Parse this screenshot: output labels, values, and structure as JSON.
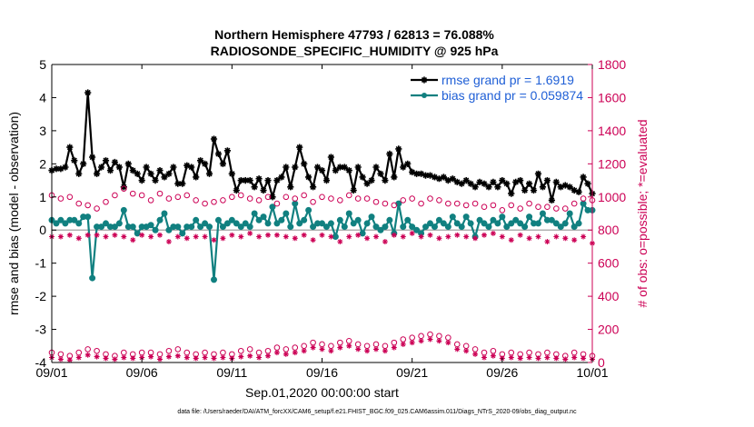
{
  "chart_data": {
    "type": "line",
    "title": "Northern Hemisphere 47793 / 62813 = 76.088%",
    "subtitle": "RADIOSONDE_SPECIFIC_HUMIDITY @ 925 hPa",
    "xlabel": "Sep.01,2020 00:00:00 start",
    "ylabel": "rmse and bias (model - observation)",
    "y2label": "# of obs: o=possible; *=evaluated",
    "xlim": [
      0,
      30
    ],
    "ylim": [
      -4,
      5
    ],
    "y2lim": [
      0,
      1800
    ],
    "xticks": [
      0,
      5,
      10,
      15,
      20,
      25,
      30
    ],
    "xtick_labels": [
      "09/01",
      "09/06",
      "09/11",
      "09/16",
      "09/21",
      "09/26",
      "10/01"
    ],
    "yticks": [
      -4,
      -3,
      -2,
      -1,
      0,
      1,
      2,
      3,
      4,
      5
    ],
    "y2ticks": [
      0,
      200,
      400,
      600,
      800,
      1000,
      1200,
      1400,
      1600,
      1800
    ],
    "legend_position": "top-right",
    "footer": "data file: /Users/raeder/DAI/ATM_forcXX/CAM6_setup/f.e21.FHIST_BGC.f09_025.CAM6assim.011/Diags_NTrS_2020-09/obs_diag_output.nc",
    "colors": {
      "rmse": "#000000",
      "bias": "#118080",
      "counts": "#cc0055",
      "zero_line": "#b0b0b0"
    },
    "series": [
      {
        "name": "rmse grand pr = 1.6919",
        "axis": "left",
        "marker": "star",
        "x": [
          0,
          0.25,
          0.5,
          0.75,
          1,
          1.25,
          1.5,
          1.75,
          2,
          2.25,
          2.5,
          2.75,
          3,
          3.25,
          3.5,
          3.75,
          4,
          4.25,
          4.5,
          4.75,
          5,
          5.25,
          5.5,
          5.75,
          6,
          6.25,
          6.5,
          6.75,
          7,
          7.25,
          7.5,
          7.75,
          8,
          8.25,
          8.5,
          8.75,
          9,
          9.25,
          9.5,
          9.75,
          10,
          10.25,
          10.5,
          10.75,
          11,
          11.25,
          11.5,
          11.75,
          12,
          12.25,
          12.5,
          12.75,
          13,
          13.25,
          13.5,
          13.75,
          14,
          14.25,
          14.5,
          14.75,
          15,
          15.25,
          15.5,
          15.75,
          16,
          16.25,
          16.5,
          16.75,
          17,
          17.25,
          17.5,
          17.75,
          18,
          18.25,
          18.5,
          18.75,
          19,
          19.25,
          19.5,
          19.75,
          20,
          20.25,
          20.5,
          20.75,
          21,
          21.25,
          21.5,
          21.75,
          22,
          22.25,
          22.5,
          22.75,
          23,
          23.25,
          23.5,
          23.75,
          24,
          24.25,
          24.5,
          24.75,
          25,
          25.25,
          25.5,
          25.75,
          26,
          26.25,
          26.5,
          26.75,
          27,
          27.25,
          27.5,
          27.75,
          28,
          28.25,
          28.5,
          28.75,
          29,
          29.25,
          29.5,
          29.75,
          30
        ],
        "values": [
          1.8,
          1.85,
          1.85,
          1.9,
          2.5,
          2.1,
          1.7,
          2.0,
          4.15,
          2.2,
          1.7,
          1.9,
          2.1,
          1.8,
          2.05,
          1.9,
          1.3,
          2.0,
          1.8,
          1.7,
          1.5,
          1.9,
          1.7,
          1.5,
          1.8,
          1.6,
          1.7,
          1.9,
          1.4,
          1.4,
          1.95,
          1.9,
          1.6,
          2.1,
          2.0,
          1.7,
          2.75,
          2.3,
          2.0,
          2.4,
          1.7,
          1.2,
          1.5,
          1.5,
          1.5,
          1.3,
          1.55,
          1.2,
          1.5,
          1.0,
          1.5,
          1.6,
          1.9,
          1.3,
          1.9,
          2.5,
          2.0,
          1.6,
          1.3,
          1.9,
          1.8,
          1.5,
          2.2,
          1.8,
          1.9,
          1.9,
          1.8,
          1.2,
          1.9,
          1.6,
          1.4,
          1.5,
          1.9,
          1.7,
          1.5,
          2.3,
          1.6,
          2.45,
          1.9,
          2.0,
          1.75,
          1.7,
          1.7,
          1.65,
          1.65,
          1.6,
          1.55,
          1.6,
          1.5,
          1.55,
          1.45,
          1.4,
          1.5,
          1.4,
          1.3,
          1.45,
          1.4,
          1.3,
          1.45,
          1.3,
          1.5,
          1.4,
          1.1,
          1.45,
          1.5,
          1.2,
          1.4,
          1.2,
          1.7,
          1.3,
          1.5,
          0.9,
          1.45,
          1.3,
          1.35,
          1.3,
          1.2,
          1.15,
          1.6,
          1.4,
          1.1
        ]
      },
      {
        "name": "bias grand pr = 0.059874",
        "axis": "left",
        "marker": "dot",
        "x": [
          0,
          0.25,
          0.5,
          0.75,
          1,
          1.25,
          1.5,
          1.75,
          2,
          2.25,
          2.5,
          2.75,
          3,
          3.25,
          3.5,
          3.75,
          4,
          4.25,
          4.5,
          4.75,
          5,
          5.25,
          5.5,
          5.75,
          6,
          6.25,
          6.5,
          6.75,
          7,
          7.25,
          7.5,
          7.75,
          8,
          8.25,
          8.5,
          8.75,
          9,
          9.25,
          9.5,
          9.75,
          10,
          10.25,
          10.5,
          10.75,
          11,
          11.25,
          11.5,
          11.75,
          12,
          12.25,
          12.5,
          12.75,
          13,
          13.25,
          13.5,
          13.75,
          14,
          14.25,
          14.5,
          14.75,
          15,
          15.25,
          15.5,
          15.75,
          16,
          16.25,
          16.5,
          16.75,
          17,
          17.25,
          17.5,
          17.75,
          18,
          18.25,
          18.5,
          18.75,
          19,
          19.25,
          19.5,
          19.75,
          20,
          20.25,
          20.5,
          20.75,
          21,
          21.25,
          21.5,
          21.75,
          22,
          22.25,
          22.5,
          22.75,
          23,
          23.25,
          23.5,
          23.75,
          24,
          24.25,
          24.5,
          24.75,
          25,
          25.25,
          25.5,
          25.75,
          26,
          26.25,
          26.5,
          26.75,
          27,
          27.25,
          27.5,
          27.75,
          28,
          28.25,
          28.5,
          28.75,
          29,
          29.25,
          29.5,
          29.75,
          30
        ],
        "values": [
          0.3,
          0.2,
          0.3,
          0.2,
          0.3,
          0.3,
          0.2,
          0.4,
          0.4,
          -1.45,
          0.1,
          0.1,
          0.2,
          0.1,
          0.1,
          0.2,
          0.6,
          0.1,
          0.1,
          -0.1,
          0.1,
          0.1,
          0.15,
          0.0,
          0.3,
          0.5,
          0.0,
          0.1,
          0.1,
          -0.1,
          0.1,
          0.1,
          0.3,
          0.1,
          0.2,
          0.1,
          -1.5,
          0.3,
          0.1,
          0.2,
          0.3,
          0.2,
          0.1,
          0.2,
          0.1,
          0.5,
          0.3,
          0.4,
          0.2,
          0.7,
          0.2,
          0.3,
          0.5,
          0.1,
          0.8,
          0.2,
          0.3,
          0.6,
          0.1,
          0.2,
          0.2,
          0.1,
          0.2,
          -0.2,
          0.3,
          0.1,
          0.5,
          0.2,
          0.3,
          -0.1,
          0.2,
          0.4,
          0.1,
          0.0,
          0.1,
          0.3,
          -0.1,
          0.8,
          0.1,
          0.3,
          0.1,
          0.0,
          -0.1,
          0.1,
          0.2,
          0.1,
          0.3,
          0.2,
          0.1,
          0.4,
          0.2,
          0.1,
          0.4,
          0.2,
          -0.2,
          0.3,
          0.2,
          0.1,
          0.3,
          0.2,
          0.4,
          0.1,
          0.2,
          0.3,
          0.2,
          0.1,
          0.4,
          0.2,
          0.2,
          0.5,
          0.3,
          0.3,
          0.2,
          0.1,
          0.2,
          0.5,
          0.1,
          0.2,
          0.8,
          0.6,
          0.6
        ]
      },
      {
        "name": "possible",
        "axis": "right",
        "marker": "open-circle",
        "x": [
          0,
          0.5,
          1,
          1.5,
          2,
          2.5,
          3,
          3.5,
          4,
          4.5,
          5,
          5.5,
          6,
          6.5,
          7,
          7.5,
          8,
          8.5,
          9,
          9.5,
          10,
          10.5,
          11,
          11.5,
          12,
          12.5,
          13,
          13.5,
          14,
          14.5,
          15,
          15.5,
          16,
          16.5,
          17,
          17.5,
          18,
          18.5,
          19,
          19.5,
          20,
          20.5,
          21,
          21.5,
          22,
          22.5,
          23,
          23.5,
          24,
          24.5,
          25,
          25.5,
          26,
          26.5,
          27,
          27.5,
          28,
          28.5,
          29,
          29.5,
          30,
          0,
          0.5,
          1,
          1.5,
          2,
          2.5,
          3,
          3.5,
          4,
          4.5,
          5,
          5.5,
          6,
          6.5,
          7,
          7.5,
          8,
          8.5,
          9,
          9.5,
          10,
          10.5,
          11,
          11.5,
          12,
          12.5,
          13,
          13.5,
          14,
          14.5,
          15,
          15.5,
          16,
          16.5,
          17,
          17.5,
          18,
          18.5,
          19,
          19.5,
          20,
          20.5,
          21,
          21.5,
          22,
          22.5,
          23,
          23.5,
          24,
          24.5,
          25,
          25.5,
          26,
          26.5,
          27,
          27.5,
          28,
          28.5,
          29,
          29.5,
          30
        ],
        "values": [
          1010,
          990,
          1000,
          960,
          950,
          930,
          970,
          1010,
          1050,
          1020,
          1010,
          980,
          1020,
          990,
          1000,
          1010,
          980,
          960,
          970,
          980,
          1000,
          1010,
          990,
          980,
          1000,
          960,
          1000,
          990,
          1010,
          970,
          1000,
          990,
          980,
          1010,
          990,
          990,
          970,
          960,
          950,
          980,
          990,
          960,
          990,
          980,
          960,
          960,
          950,
          960,
          940,
          950,
          920,
          950,
          930,
          960,
          940,
          940,
          930,
          930,
          960,
          990,
          980,
          60,
          50,
          40,
          60,
          80,
          70,
          50,
          40,
          60,
          50,
          60,
          60,
          50,
          70,
          80,
          60,
          50,
          60,
          50,
          60,
          50,
          70,
          80,
          60,
          70,
          90,
          80,
          90,
          100,
          120,
          110,
          100,
          120,
          130,
          110,
          100,
          110,
          100,
          120,
          140,
          150,
          160,
          170,
          160,
          150,
          110,
          100,
          80,
          60,
          70,
          50,
          60,
          50,
          60,
          50,
          60,
          50,
          40,
          60,
          50,
          40
        ]
      },
      {
        "name": "evaluated",
        "axis": "right",
        "marker": "star",
        "x": [
          0,
          0.5,
          1,
          1.5,
          2,
          2.5,
          3,
          3.5,
          4,
          4.5,
          5,
          5.5,
          6,
          6.5,
          7,
          7.5,
          8,
          8.5,
          9,
          9.5,
          10,
          10.5,
          11,
          11.5,
          12,
          12.5,
          13,
          13.5,
          14,
          14.5,
          15,
          15.5,
          16,
          16.5,
          17,
          17.5,
          18,
          18.5,
          19,
          19.5,
          20,
          20.5,
          21,
          21.5,
          22,
          22.5,
          23,
          23.5,
          24,
          24.5,
          25,
          25.5,
          26,
          26.5,
          27,
          27.5,
          28,
          28.5,
          29,
          29.5,
          30,
          0,
          0.5,
          1,
          1.5,
          2,
          2.5,
          3,
          3.5,
          4,
          4.5,
          5,
          5.5,
          6,
          6.5,
          7,
          7.5,
          8,
          8.5,
          9,
          9.5,
          10,
          10.5,
          11,
          11.5,
          12,
          12.5,
          13,
          13.5,
          14,
          14.5,
          15,
          15.5,
          16,
          16.5,
          17,
          17.5,
          18,
          18.5,
          19,
          19.5,
          20,
          20.5,
          21,
          21.5,
          22,
          22.5,
          23,
          23.5,
          24,
          24.5,
          25,
          25.5,
          26,
          26.5,
          27,
          27.5,
          28,
          28.5,
          29,
          29.5,
          30
        ],
        "values": [
          760,
          760,
          770,
          750,
          770,
          770,
          760,
          770,
          760,
          740,
          770,
          760,
          770,
          730,
          760,
          750,
          760,
          760,
          740,
          750,
          770,
          760,
          780,
          760,
          770,
          770,
          760,
          750,
          770,
          740,
          770,
          760,
          730,
          760,
          770,
          750,
          760,
          730,
          770,
          760,
          780,
          760,
          770,
          750,
          760,
          770,
          760,
          750,
          770,
          780,
          760,
          740,
          770,
          750,
          760,
          730,
          760,
          750,
          740,
          760,
          720,
          30,
          20,
          15,
          30,
          45,
          35,
          25,
          20,
          30,
          25,
          30,
          35,
          20,
          35,
          40,
          30,
          25,
          30,
          25,
          30,
          25,
          35,
          40,
          30,
          40,
          60,
          50,
          60,
          70,
          90,
          80,
          70,
          90,
          100,
          80,
          70,
          80,
          70,
          90,
          110,
          120,
          130,
          140,
          130,
          120,
          80,
          70,
          50,
          30,
          40,
          25,
          30,
          25,
          30,
          25,
          30,
          25,
          20,
          30,
          25,
          20
        ]
      }
    ]
  }
}
